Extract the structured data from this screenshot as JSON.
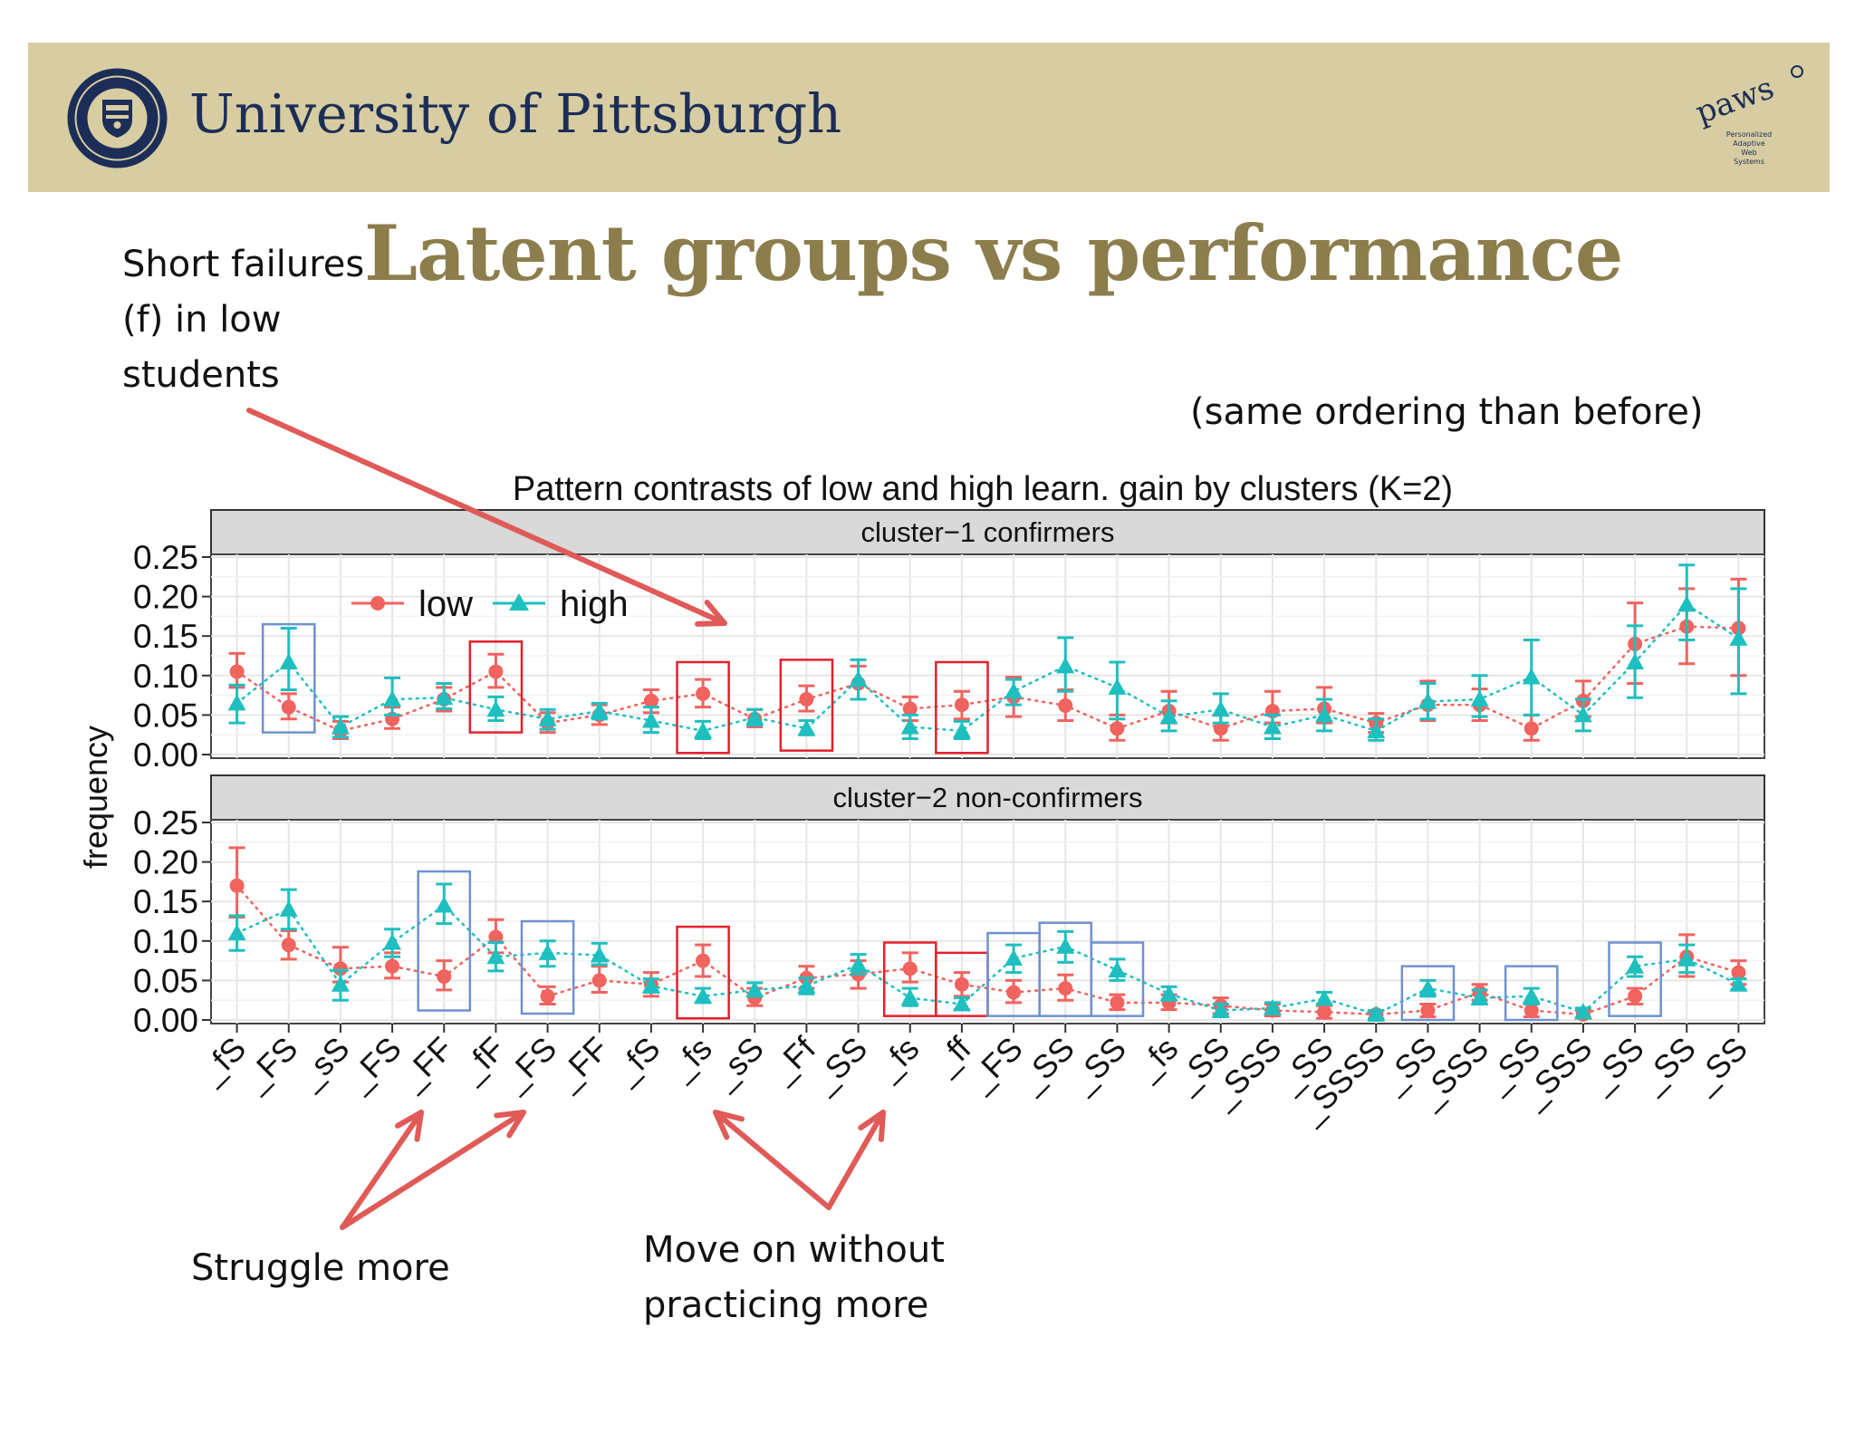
{
  "header": {
    "university_name": "University of Pittsburgh",
    "seal_icon": "university-seal-icon",
    "logo_icon": "paws-logo-icon",
    "logo_letters": "paws",
    "logo_caption": [
      "Personalized",
      "Adaptive",
      "Web",
      "Systems"
    ],
    "background_color": "#d8cda2",
    "name_color": "#1c2e57"
  },
  "slide": {
    "title": "Latent groups vs performance",
    "title_color": "#8c7d4c"
  },
  "annotations": {
    "top_left": [
      "Short failures",
      "(f) in low",
      "students"
    ],
    "top_right": "(same ordering than before)",
    "bottom_left": "Struggle more",
    "bottom_middle": [
      "Move on without",
      "practicing more"
    ],
    "arrow_color": "#e05a58"
  },
  "chart_data": {
    "type": "scatter",
    "title": "Pattern contrasts of low and high learn. gain  by clusters (K=2)",
    "ylabel": "frequency",
    "ylim": [
      0,
      0.27
    ],
    "yticks": [
      "0.00",
      "0.05",
      "0.10",
      "0.15",
      "0.20",
      "0.25"
    ],
    "grid": true,
    "legend_position": "top-left",
    "categories": [
      "_fS",
      "_FS",
      "_sS",
      "_FS",
      "_FF",
      "_fF",
      "_FS",
      "_FF",
      "_fS",
      "_fs",
      "_sS",
      "_Ff",
      "_SS",
      "_fs",
      "_ff",
      "_FS",
      "_SS",
      "_SS",
      "_fs",
      "_SS",
      "_SSS",
      "_SS",
      "_SSSS",
      "_SS",
      "_SSS",
      "_SS",
      "_SSS",
      "_SS",
      "_SS",
      "_SS"
    ],
    "colors": {
      "low": "#f0635f",
      "high": "#1fbfbf",
      "box_red": "#e3202c",
      "box_blue": "#6f92cf"
    },
    "panels": [
      {
        "strip": "cluster−1  confirmers",
        "series": [
          {
            "name": "low",
            "values": [
              0.105,
              0.06,
              0.03,
              0.045,
              0.07,
              0.105,
              0.04,
              0.05,
              0.068,
              0.077,
              0.045,
              0.07,
              0.09,
              0.058,
              0.063,
              0.073,
              0.062,
              0.033,
              0.055,
              0.033,
              0.055,
              0.058,
              0.04,
              0.063,
              0.063,
              0.033,
              0.068,
              0.14,
              0.162,
              0.16
            ],
            "lower": [
              0.085,
              0.045,
              0.02,
              0.033,
              0.055,
              0.085,
              0.028,
              0.038,
              0.053,
              0.06,
              0.035,
              0.055,
              0.07,
              0.043,
              0.045,
              0.048,
              0.043,
              0.018,
              0.04,
              0.018,
              0.04,
              0.04,
              0.028,
              0.043,
              0.043,
              0.018,
              0.048,
              0.09,
              0.115,
              0.1
            ],
            "upper": [
              0.128,
              0.077,
              0.042,
              0.06,
              0.085,
              0.127,
              0.053,
              0.063,
              0.082,
              0.095,
              0.057,
              0.087,
              0.112,
              0.073,
              0.08,
              0.098,
              0.082,
              0.05,
              0.08,
              0.05,
              0.08,
              0.085,
              0.052,
              0.093,
              0.083,
              0.05,
              0.093,
              0.192,
              0.21,
              0.222
            ]
          },
          {
            "name": "high",
            "values": [
              0.065,
              0.117,
              0.035,
              0.07,
              0.072,
              0.057,
              0.045,
              0.055,
              0.043,
              0.03,
              0.047,
              0.033,
              0.095,
              0.035,
              0.03,
              0.08,
              0.112,
              0.085,
              0.048,
              0.057,
              0.035,
              0.05,
              0.03,
              0.067,
              0.07,
              0.098,
              0.05,
              0.117,
              0.19,
              0.147
            ],
            "lower": [
              0.04,
              0.082,
              0.022,
              0.05,
              0.058,
              0.043,
              0.032,
              0.045,
              0.028,
              0.02,
              0.037,
              0.025,
              0.07,
              0.02,
              0.02,
              0.063,
              0.08,
              0.045,
              0.03,
              0.04,
              0.02,
              0.03,
              0.018,
              0.045,
              0.048,
              0.05,
              0.03,
              0.072,
              0.145,
              0.077
            ],
            "upper": [
              0.088,
              0.16,
              0.048,
              0.097,
              0.09,
              0.073,
              0.057,
              0.065,
              0.06,
              0.042,
              0.057,
              0.043,
              0.12,
              0.05,
              0.042,
              0.095,
              0.148,
              0.117,
              0.068,
              0.077,
              0.05,
              0.07,
              0.045,
              0.09,
              0.1,
              0.145,
              0.07,
              0.163,
              0.24,
              0.21
            ]
          }
        ],
        "boxes": [
          {
            "from": 1,
            "to": 1,
            "color": "blue",
            "ymin": 0.028,
            "ymax": 0.165
          },
          {
            "from": 5,
            "to": 5,
            "color": "red",
            "ymin": 0.028,
            "ymax": 0.143
          },
          {
            "from": 9,
            "to": 9,
            "color": "red",
            "ymin": 0.002,
            "ymax": 0.117
          },
          {
            "from": 11,
            "to": 11,
            "color": "red",
            "ymin": 0.005,
            "ymax": 0.12
          },
          {
            "from": 14,
            "to": 14,
            "color": "red",
            "ymin": 0.002,
            "ymax": 0.117
          }
        ]
      },
      {
        "strip": "cluster−2  non-confirmers",
        "series": [
          {
            "name": "low",
            "values": [
              0.17,
              0.095,
              0.065,
              0.068,
              0.055,
              0.105,
              0.03,
              0.05,
              0.045,
              0.075,
              0.028,
              0.053,
              0.058,
              0.065,
              0.045,
              0.035,
              0.04,
              0.022,
              0.022,
              0.018,
              0.012,
              0.01,
              0.007,
              0.012,
              0.035,
              0.012,
              0.007,
              0.03,
              0.08,
              0.06
            ],
            "lower": [
              0.13,
              0.077,
              0.048,
              0.053,
              0.038,
              0.085,
              0.02,
              0.035,
              0.03,
              0.055,
              0.018,
              0.04,
              0.04,
              0.048,
              0.03,
              0.022,
              0.025,
              0.013,
              0.013,
              0.008,
              0.005,
              0.002,
              0.002,
              0.004,
              0.025,
              0.004,
              0.002,
              0.02,
              0.055,
              0.045
            ],
            "upper": [
              0.218,
              0.113,
              0.092,
              0.085,
              0.075,
              0.127,
              0.042,
              0.068,
              0.06,
              0.095,
              0.04,
              0.068,
              0.075,
              0.085,
              0.06,
              0.05,
              0.057,
              0.032,
              0.032,
              0.028,
              0.02,
              0.018,
              0.012,
              0.02,
              0.045,
              0.02,
              0.012,
              0.04,
              0.108,
              0.075
            ]
          },
          {
            "name": "high",
            "values": [
              0.11,
              0.14,
              0.045,
              0.098,
              0.145,
              0.08,
              0.085,
              0.082,
              0.043,
              0.03,
              0.038,
              0.043,
              0.07,
              0.028,
              0.02,
              0.078,
              0.093,
              0.063,
              0.033,
              0.012,
              0.015,
              0.027,
              0.007,
              0.04,
              0.028,
              0.03,
              0.01,
              0.068,
              0.077,
              0.045
            ],
            "lower": [
              0.088,
              0.115,
              0.025,
              0.08,
              0.122,
              0.062,
              0.068,
              0.07,
              0.035,
              0.022,
              0.03,
              0.033,
              0.058,
              0.018,
              0.013,
              0.06,
              0.073,
              0.05,
              0.025,
              0.004,
              0.008,
              0.02,
              0.002,
              0.03,
              0.02,
              0.02,
              0.003,
              0.055,
              0.06,
              0.038
            ],
            "upper": [
              0.132,
              0.165,
              0.063,
              0.115,
              0.172,
              0.098,
              0.1,
              0.097,
              0.052,
              0.04,
              0.047,
              0.053,
              0.083,
              0.04,
              0.028,
              0.095,
              0.112,
              0.077,
              0.042,
              0.02,
              0.022,
              0.035,
              0.012,
              0.05,
              0.038,
              0.04,
              0.015,
              0.08,
              0.095,
              0.052
            ]
          }
        ],
        "boxes": [
          {
            "from": 4,
            "to": 4,
            "color": "blue",
            "ymin": 0.012,
            "ymax": 0.188
          },
          {
            "from": 6,
            "to": 6,
            "color": "blue",
            "ymin": 0.008,
            "ymax": 0.125
          },
          {
            "from": 9,
            "to": 9,
            "color": "red",
            "ymin": 0.002,
            "ymax": 0.118
          },
          {
            "from": 13,
            "to": 13,
            "color": "red",
            "ymin": 0.005,
            "ymax": 0.098
          },
          {
            "from": 14,
            "to": 14,
            "color": "red",
            "ymin": 0.005,
            "ymax": 0.085
          },
          {
            "from": 15,
            "to": 15,
            "color": "blue",
            "ymin": 0.005,
            "ymax": 0.11
          },
          {
            "from": 16,
            "to": 16,
            "color": "blue",
            "ymin": 0.005,
            "ymax": 0.123
          },
          {
            "from": 17,
            "to": 17,
            "color": "blue",
            "ymin": 0.005,
            "ymax": 0.098
          },
          {
            "from": 23,
            "to": 23,
            "color": "blue",
            "ymin": 0.0,
            "ymax": 0.068
          },
          {
            "from": 25,
            "to": 25,
            "color": "blue",
            "ymin": 0.0,
            "ymax": 0.068
          },
          {
            "from": 27,
            "to": 27,
            "color": "blue",
            "ymin": 0.005,
            "ymax": 0.098
          }
        ]
      }
    ]
  }
}
